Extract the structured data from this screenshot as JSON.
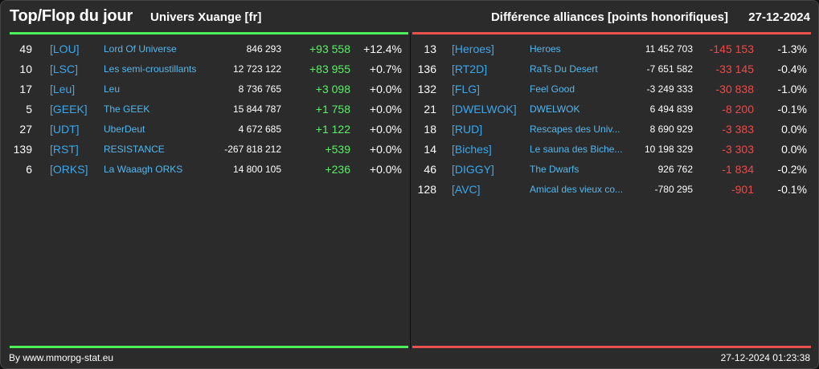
{
  "header": {
    "title": "Top/Flop du jour",
    "universe": "Univers Xuange [fr]",
    "subject": "Différence alliances [points honorifiques]",
    "date": "27-12-2024"
  },
  "colors": {
    "top_accent": "#4ef05a",
    "flop_accent": "#e9514c",
    "tag_blue": "#3aa8ee",
    "background": "#2b2b2b"
  },
  "top": [
    {
      "rank": "49",
      "tag": "[LOU]",
      "name": "Lord Of Universe",
      "points": "846 293",
      "delta": "+93 558",
      "pct": "+12.4%"
    },
    {
      "rank": "10",
      "tag": "[LSC]",
      "name": "Les semi-croustillants",
      "points": "12 723 122",
      "delta": "+83 955",
      "pct": "+0.7%"
    },
    {
      "rank": "17",
      "tag": "[Leu]",
      "name": "Leu",
      "points": "8 736 765",
      "delta": "+3 098",
      "pct": "+0.0%"
    },
    {
      "rank": "5",
      "tag": "[GEEK]",
      "name": "The GEEK",
      "points": "15 844 787",
      "delta": "+1 758",
      "pct": "+0.0%"
    },
    {
      "rank": "27",
      "tag": "[UDT]",
      "name": "UberDeut",
      "points": "4 672 685",
      "delta": "+1 122",
      "pct": "+0.0%"
    },
    {
      "rank": "139",
      "tag": "[RST]",
      "name": "RESISTANCE",
      "points": "-267 818 212",
      "delta": "+539",
      "pct": "+0.0%"
    },
    {
      "rank": "6",
      "tag": "[ORKS]",
      "name": "La Waaagh ORKS",
      "points": "14 800 105",
      "delta": "+236",
      "pct": "+0.0%"
    }
  ],
  "flop": [
    {
      "rank": "13",
      "tag": "[Heroes]",
      "name": "Heroes",
      "points": "11 452 703",
      "delta": "-145 153",
      "pct": "-1.3%"
    },
    {
      "rank": "136",
      "tag": "[RT2D]",
      "name": "RaTs Du Desert",
      "points": "-7 651 582",
      "delta": "-33 145",
      "pct": "-0.4%"
    },
    {
      "rank": "132",
      "tag": "[FLG]",
      "name": "Feel Good",
      "points": "-3 249 333",
      "delta": "-30 838",
      "pct": "-1.0%"
    },
    {
      "rank": "21",
      "tag": "[DWELWOK]",
      "name": "DWELWOK",
      "points": "6 494 839",
      "delta": "-8 200",
      "pct": "-0.1%"
    },
    {
      "rank": "18",
      "tag": "[RUD]",
      "name": "Rescapes des Univ...",
      "points": "8 690 929",
      "delta": "-3 383",
      "pct": "0.0%"
    },
    {
      "rank": "14",
      "tag": "[Biches]",
      "name": "Le sauna des Biche...",
      "points": "10 198 329",
      "delta": "-3 303",
      "pct": "0.0%"
    },
    {
      "rank": "46",
      "tag": "[DIGGY]",
      "name": "The Dwarfs",
      "points": "926 762",
      "delta": "-1 834",
      "pct": "-0.2%"
    },
    {
      "rank": "128",
      "tag": "[AVC]",
      "name": "Amical des vieux co...",
      "points": "-780 295",
      "delta": "-901",
      "pct": "-0.1%"
    }
  ],
  "footer": {
    "credit": "By www.mmorpg-stat.eu",
    "generated": "27-12-2024 01:23:38"
  }
}
